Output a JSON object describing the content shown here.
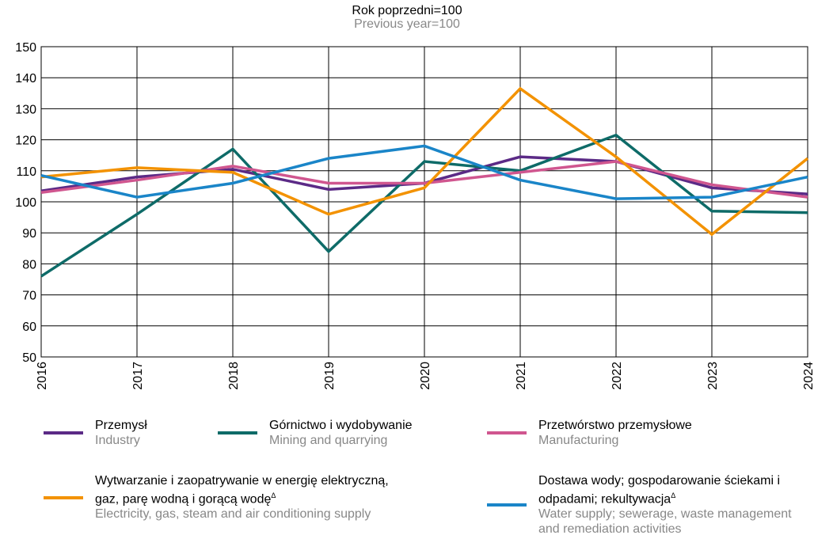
{
  "chart_data": {
    "type": "line",
    "title": "Rok poprzedni=100",
    "subtitle": "Previous year=100",
    "categories": [
      "2016",
      "2017",
      "2018",
      "2019",
      "2020",
      "2021",
      "2022",
      "2023",
      "2024"
    ],
    "ylim": [
      50,
      150
    ],
    "yticks": [
      50,
      60,
      70,
      80,
      90,
      100,
      110,
      120,
      130,
      140,
      150
    ],
    "grid": true,
    "series": [
      {
        "name": "Przemysł",
        "name_en": "Industry",
        "color": "#5b2a86",
        "values": [
          103.5,
          108,
          110.5,
          104,
          106,
          114.5,
          113,
          104.5,
          102.5
        ]
      },
      {
        "name": "Górnictwo i wydobywanie",
        "name_en": "Mining and quarrying",
        "color": "#0e6b68",
        "values": [
          76,
          96,
          117,
          84,
          113,
          110,
          121.5,
          97,
          96.5
        ]
      },
      {
        "name": "Przetwórstwo przemysłowe",
        "name_en": "Manufacturing",
        "color": "#d0568f",
        "values": [
          103,
          107,
          111.5,
          106,
          106,
          109.5,
          113,
          105.5,
          101.5
        ]
      },
      {
        "name": "Wytwarzanie i zaopatrywanie w energię elektryczną, gaz, parę wodną i gorącą wodę",
        "name_mark": "Δ",
        "name_en": "Electricity, gas, steam and air conditioning supply",
        "color": "#f39200",
        "values": [
          108,
          111,
          109.5,
          96,
          104.5,
          136.5,
          114.5,
          89.5,
          114
        ]
      },
      {
        "name": "Dostawa wody; gospodarowanie ściekami i odpadami; rekultywacja",
        "name_mark": "Δ",
        "name_en": "Water supply; sewerage, waste management and remediation activities",
        "color": "#1a85c8",
        "values": [
          108.5,
          101.5,
          106,
          114,
          118,
          107,
          101,
          101.5,
          108
        ]
      }
    ]
  }
}
